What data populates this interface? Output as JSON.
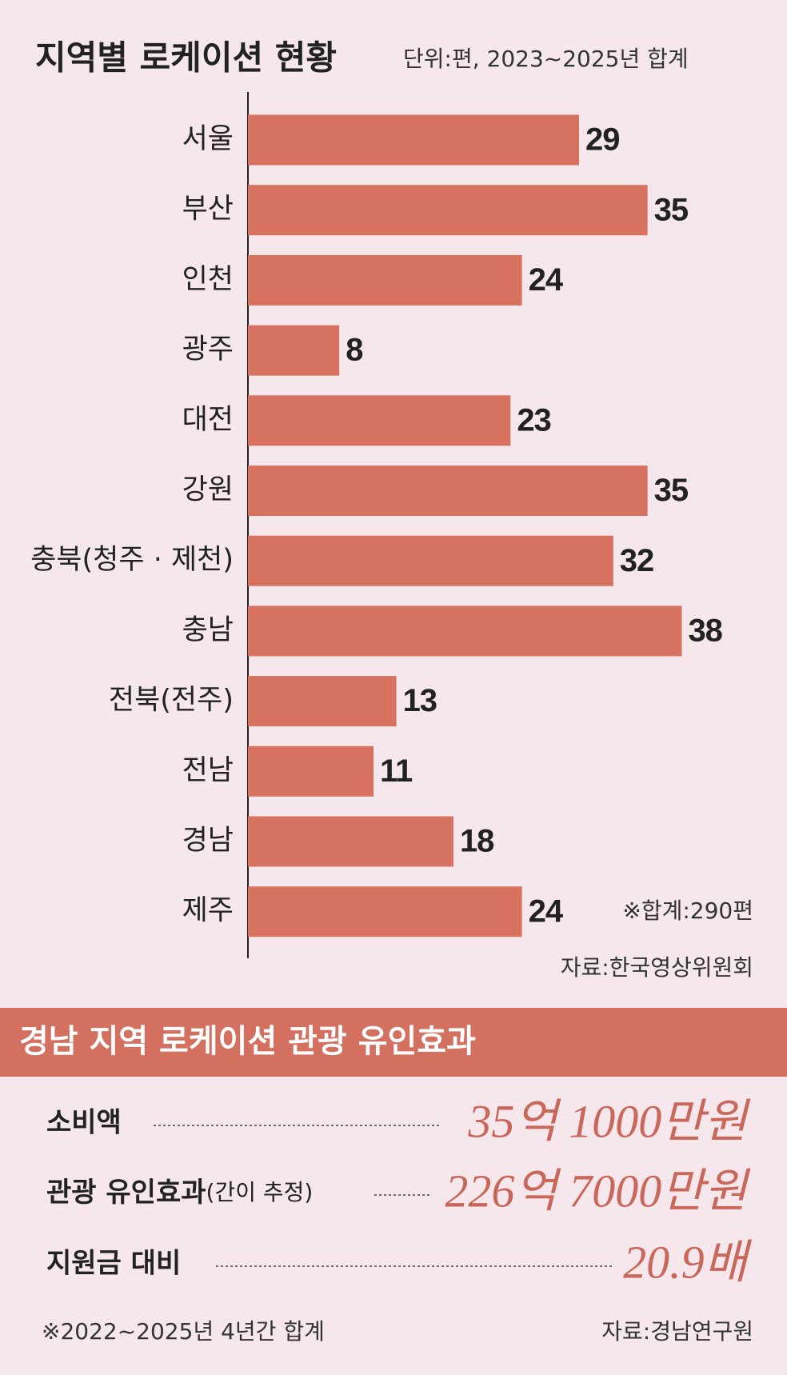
{
  "chart_data": {
    "type": "bar",
    "orientation": "horizontal",
    "title": "지역별 로케이션 현황",
    "subtitle": "단위:편, 2023~2025년 합계",
    "categories": [
      "서울",
      "부산",
      "인천",
      "광주",
      "대전",
      "강원",
      "충북(청주 · 제천)",
      "충남",
      "전북(전주)",
      "전남",
      "경남",
      "제주"
    ],
    "values": [
      29,
      35,
      24,
      8,
      23,
      35,
      32,
      38,
      13,
      11,
      18,
      24
    ],
    "color": "#d6725f",
    "xlim": [
      0,
      40
    ],
    "annotation": "※합계:290편",
    "source": "자료:한국영상위원회"
  },
  "effect": {
    "title": "경남 지역 로케이션 관광 유인효과",
    "rows": [
      {
        "label": "소비액",
        "value": "35억 1000만원"
      },
      {
        "label": "관광 유인효과",
        "note": "(간이 추정)",
        "value": "226억 7000만원"
      },
      {
        "label": "지원금 대비",
        "value": "20.9배"
      }
    ],
    "footnote": "※2022~2025년 4년간 합계",
    "source": "자료:경남연구원"
  }
}
